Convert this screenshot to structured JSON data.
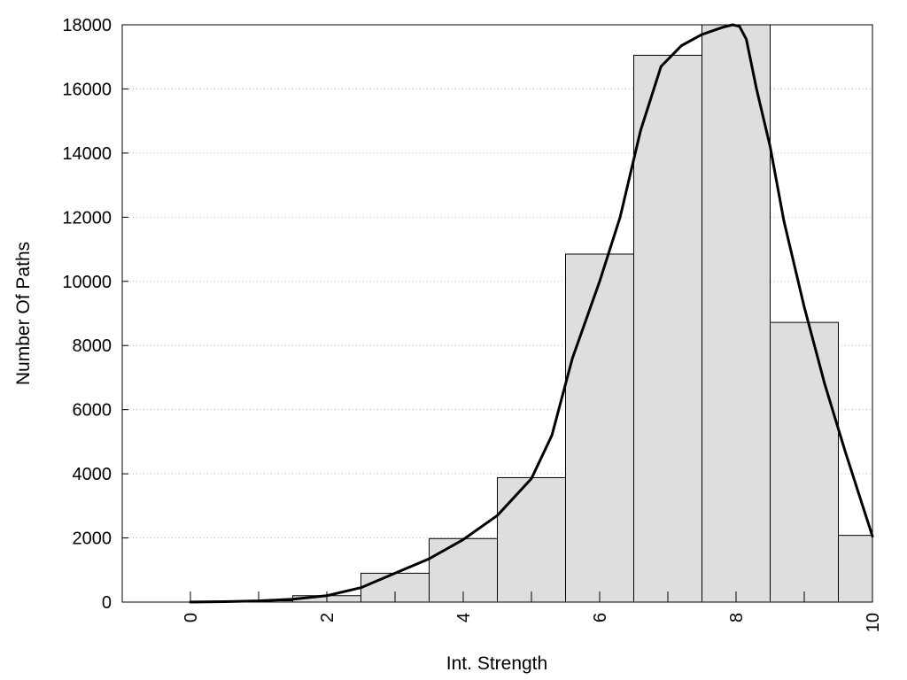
{
  "chart_data": {
    "type": "bar",
    "xlabel": "Int. Strength",
    "ylabel": "Number Of Paths",
    "xlim": [
      -1,
      10
    ],
    "ylim": [
      0,
      18000
    ],
    "x_ticks": [
      0,
      2,
      4,
      6,
      8,
      10
    ],
    "y_ticks": [
      0,
      2000,
      4000,
      6000,
      8000,
      10000,
      12000,
      14000,
      16000,
      18000
    ],
    "grid": "horizontal dotted",
    "bar_color": "#dedede",
    "bar_edge_color": "#000000",
    "line_color": "#000000",
    "bars": [
      {
        "x_start": 0,
        "x_end": 1,
        "value": 30
      },
      {
        "x_start": 1,
        "x_end": 1.5,
        "value": 40
      },
      {
        "x_start": 1.5,
        "x_end": 2.5,
        "value": 200
      },
      {
        "x_start": 2.5,
        "x_end": 3.5,
        "value": 900
      },
      {
        "x_start": 3.5,
        "x_end": 4.5,
        "value": 1980
      },
      {
        "x_start": 4.5,
        "x_end": 5.5,
        "value": 3880
      },
      {
        "x_start": 5.5,
        "x_end": 6.5,
        "value": 10850
      },
      {
        "x_start": 6.5,
        "x_end": 7.5,
        "value": 17050
      },
      {
        "x_start": 7.5,
        "x_end": 8.5,
        "value": 18000
      },
      {
        "x_start": 8.5,
        "x_end": 9.5,
        "value": 8720
      },
      {
        "x_start": 9.5,
        "x_end": 10,
        "value": 2080
      }
    ],
    "curve": {
      "x": [
        0,
        0.5,
        1,
        1.5,
        2,
        2.5,
        3,
        3.5,
        4,
        4.5,
        5,
        5.3,
        5.6,
        6,
        6.3,
        6.6,
        6.9,
        7.2,
        7.5,
        7.8,
        7.95,
        8.05,
        8.15,
        8.3,
        8.5,
        8.7,
        9,
        9.3,
        9.6,
        10
      ],
      "y": [
        0,
        15,
        40,
        90,
        200,
        450,
        900,
        1350,
        1950,
        2700,
        3850,
        5200,
        7600,
        10000,
        12000,
        14700,
        16700,
        17350,
        17700,
        17920,
        18000,
        17950,
        17550,
        16000,
        14200,
        11900,
        9200,
        6800,
        4700,
        2050
      ]
    }
  }
}
